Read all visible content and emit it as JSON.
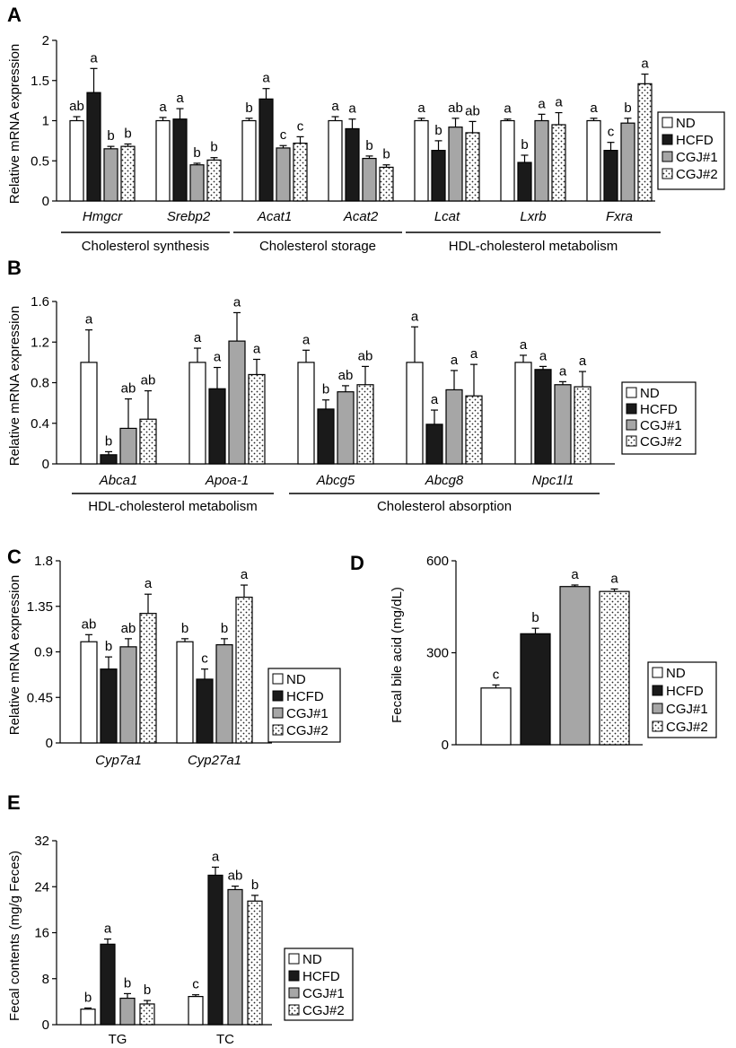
{
  "legend": [
    "ND",
    "HCFD",
    "CGJ#1",
    "CGJ#2"
  ],
  "colors": {
    "ND": "#ffffff",
    "HCFD": "#1a1a1a",
    "CGJ1": "#a6a6a6",
    "CGJ2": "dots"
  },
  "chart_data": [
    {
      "panel": "A",
      "type": "bar",
      "ylabel": "Relative mRNA expression",
      "ylim": [
        0,
        2
      ],
      "yticks": [
        "0",
        "0.5",
        "1",
        "1.5",
        "2"
      ],
      "categories": [
        "Hmgcr",
        "Srebp2",
        "Acat1",
        "Acat2",
        "Lcat",
        "Lxrb",
        "Fxra"
      ],
      "groups": [
        {
          "label": "Cholesterol synthesis",
          "from": 0,
          "to": 1
        },
        {
          "label": "Cholesterol storage",
          "from": 2,
          "to": 3
        },
        {
          "label": "HDL-cholesterol metabolism",
          "from": 4,
          "to": 6
        }
      ],
      "series": [
        {
          "name": "ND",
          "values": [
            1.0,
            1.0,
            1.0,
            1.0,
            1.0,
            1.0,
            1.0
          ],
          "errors": [
            0.05,
            0.04,
            0.03,
            0.05,
            0.03,
            0.02,
            0.03
          ]
        },
        {
          "name": "HCFD",
          "values": [
            1.35,
            1.02,
            1.27,
            0.9,
            0.63,
            0.48,
            0.63
          ],
          "errors": [
            0.3,
            0.13,
            0.13,
            0.12,
            0.12,
            0.09,
            0.1
          ]
        },
        {
          "name": "CGJ#1",
          "values": [
            0.65,
            0.45,
            0.66,
            0.53,
            0.92,
            1.0,
            0.97
          ],
          "errors": [
            0.03,
            0.02,
            0.03,
            0.03,
            0.11,
            0.08,
            0.06
          ]
        },
        {
          "name": "CGJ#2",
          "values": [
            0.68,
            0.51,
            0.72,
            0.42,
            0.85,
            0.95,
            1.46
          ],
          "errors": [
            0.03,
            0.03,
            0.08,
            0.03,
            0.14,
            0.15,
            0.12
          ]
        }
      ],
      "labels": [
        [
          "ab",
          "a",
          "b",
          "b"
        ],
        [
          "a",
          "a",
          "b",
          "b"
        ],
        [
          "b",
          "a",
          "c",
          "c"
        ],
        [
          "a",
          "a",
          "b",
          "b"
        ],
        [
          "a",
          "b",
          "ab",
          "ab"
        ],
        [
          "a",
          "b",
          "a",
          "a"
        ],
        [
          "a",
          "c",
          "b",
          "a"
        ]
      ]
    },
    {
      "panel": "B",
      "type": "bar",
      "ylabel": "Relative mRNA expression",
      "ylim": [
        0,
        1.6
      ],
      "yticks": [
        "0",
        "0.4",
        "0.8",
        "1.2",
        "1.6"
      ],
      "categories": [
        "Abca1",
        "Apoa-1",
        "Abcg5",
        "Abcg8",
        "Npc1l1"
      ],
      "groups": [
        {
          "label": "HDL-cholesterol metabolism",
          "from": 0,
          "to": 1
        },
        {
          "label": "Cholesterol absorption",
          "from": 2,
          "to": 4
        }
      ],
      "series": [
        {
          "name": "ND",
          "values": [
            1.0,
            1.0,
            1.0,
            1.0,
            1.0
          ],
          "errors": [
            0.32,
            0.14,
            0.12,
            0.35,
            0.07
          ]
        },
        {
          "name": "HCFD",
          "values": [
            0.09,
            0.74,
            0.54,
            0.39,
            0.93
          ],
          "errors": [
            0.03,
            0.21,
            0.09,
            0.14,
            0.03
          ]
        },
        {
          "name": "CGJ#1",
          "values": [
            0.35,
            1.21,
            0.71,
            0.73,
            0.78
          ],
          "errors": [
            0.29,
            0.28,
            0.06,
            0.19,
            0.03
          ]
        },
        {
          "name": "CGJ#2",
          "values": [
            0.44,
            0.88,
            0.78,
            0.67,
            0.76
          ],
          "errors": [
            0.28,
            0.15,
            0.18,
            0.31,
            0.15
          ]
        }
      ],
      "labels": [
        [
          "a",
          "b",
          "ab",
          "ab"
        ],
        [
          "a",
          "a",
          "a",
          "a"
        ],
        [
          "a",
          "b",
          "ab",
          "ab"
        ],
        [
          "a",
          "a",
          "a",
          "a"
        ],
        [
          "a",
          "a",
          "a",
          "a"
        ]
      ]
    },
    {
      "panel": "C",
      "type": "bar",
      "ylabel": "Relative mRNA expression",
      "ylim": [
        0,
        1.8
      ],
      "yticks": [
        "0",
        "0.45",
        "0.9",
        "1.35",
        "1.8"
      ],
      "categories": [
        "Cyp7a1",
        "Cyp27a1"
      ],
      "series": [
        {
          "name": "ND",
          "values": [
            1.0,
            1.0
          ],
          "errors": [
            0.07,
            0.03
          ]
        },
        {
          "name": "HCFD",
          "values": [
            0.73,
            0.63
          ],
          "errors": [
            0.12,
            0.1
          ]
        },
        {
          "name": "CGJ#1",
          "values": [
            0.95,
            0.97
          ],
          "errors": [
            0.08,
            0.06
          ]
        },
        {
          "name": "CGJ#2",
          "values": [
            1.28,
            1.44
          ],
          "errors": [
            0.19,
            0.12
          ]
        }
      ],
      "labels": [
        [
          "ab",
          "b",
          "ab",
          "a"
        ],
        [
          "b",
          "c",
          "b",
          "a"
        ]
      ]
    },
    {
      "panel": "D",
      "type": "bar",
      "ylabel": "Fecal bile acid (mg/dL)",
      "ylim": [
        0,
        600
      ],
      "yticks": [
        "0",
        "300",
        "600"
      ],
      "categories": [
        ""
      ],
      "series": [
        {
          "name": "ND",
          "values": [
            185
          ],
          "errors": [
            10
          ]
        },
        {
          "name": "HCFD",
          "values": [
            362
          ],
          "errors": [
            18
          ]
        },
        {
          "name": "CGJ#1",
          "values": [
            516
          ],
          "errors": [
            5
          ]
        },
        {
          "name": "CGJ#2",
          "values": [
            500
          ],
          "errors": [
            8
          ]
        }
      ],
      "labels": [
        [
          "c",
          "b",
          "a",
          "a"
        ]
      ]
    },
    {
      "panel": "E",
      "type": "bar",
      "ylabel": "Fecal contents (mg/g Feces)",
      "ylim": [
        0,
        32
      ],
      "yticks": [
        "0",
        "8",
        "16",
        "24",
        "32"
      ],
      "categories": [
        "TG",
        "TC"
      ],
      "series": [
        {
          "name": "ND",
          "values": [
            2.7,
            4.9
          ],
          "errors": [
            0.2,
            0.3
          ]
        },
        {
          "name": "HCFD",
          "values": [
            14.0,
            26.0
          ],
          "errors": [
            0.9,
            1.4
          ]
        },
        {
          "name": "CGJ#1",
          "values": [
            4.6,
            23.5
          ],
          "errors": [
            0.8,
            0.6
          ]
        },
        {
          "name": "CGJ#2",
          "values": [
            3.6,
            21.5
          ],
          "errors": [
            0.6,
            1.0
          ]
        }
      ],
      "labels": [
        [
          "b",
          "a",
          "b",
          "b"
        ],
        [
          "c",
          "a",
          "ab",
          "b"
        ]
      ]
    }
  ]
}
